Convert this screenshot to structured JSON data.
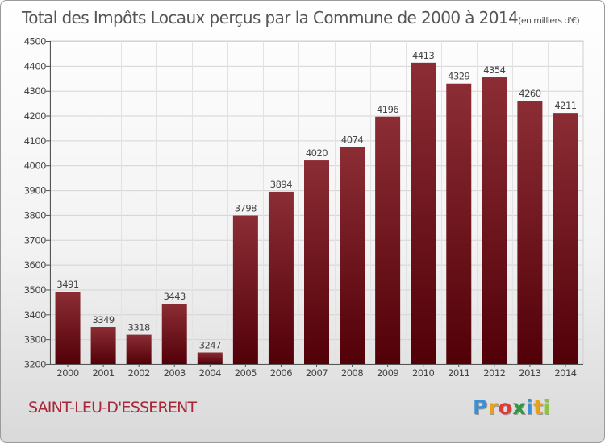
{
  "chart_data": {
    "type": "bar",
    "title": "Total des Impôts Locaux perçus par la Commune de 2000 à 2014",
    "subtitle": "(en milliers d'€)",
    "xlabel": "",
    "ylabel": "",
    "categories": [
      "2000",
      "2001",
      "2002",
      "2003",
      "2004",
      "2005",
      "2006",
      "2007",
      "2008",
      "2009",
      "2010",
      "2011",
      "2012",
      "2013",
      "2014"
    ],
    "values": [
      3491,
      3349,
      3318,
      3443,
      3247,
      3798,
      3894,
      4020,
      4074,
      4196,
      4413,
      4329,
      4354,
      4260,
      4211
    ],
    "ylim": [
      3200,
      4500
    ],
    "yticks": [
      3200,
      3300,
      3400,
      3500,
      3600,
      3700,
      3800,
      3900,
      4000,
      4100,
      4200,
      4300,
      4400,
      4500
    ],
    "grid": true,
    "bar_color_top": "#8c2d35",
    "bar_color_bottom": "#520008"
  },
  "footer": {
    "commune": "SAINT-LEU-D'ESSERENT",
    "logo_letters": [
      "P",
      "r",
      "o",
      "x",
      "i",
      "t",
      "i"
    ],
    "logo_colors": [
      "#3a8fd6",
      "#e8a020",
      "#e03a3a",
      "#2f9a3f",
      "#3a8fd6",
      "#e8a020",
      "#8cc63e"
    ]
  }
}
